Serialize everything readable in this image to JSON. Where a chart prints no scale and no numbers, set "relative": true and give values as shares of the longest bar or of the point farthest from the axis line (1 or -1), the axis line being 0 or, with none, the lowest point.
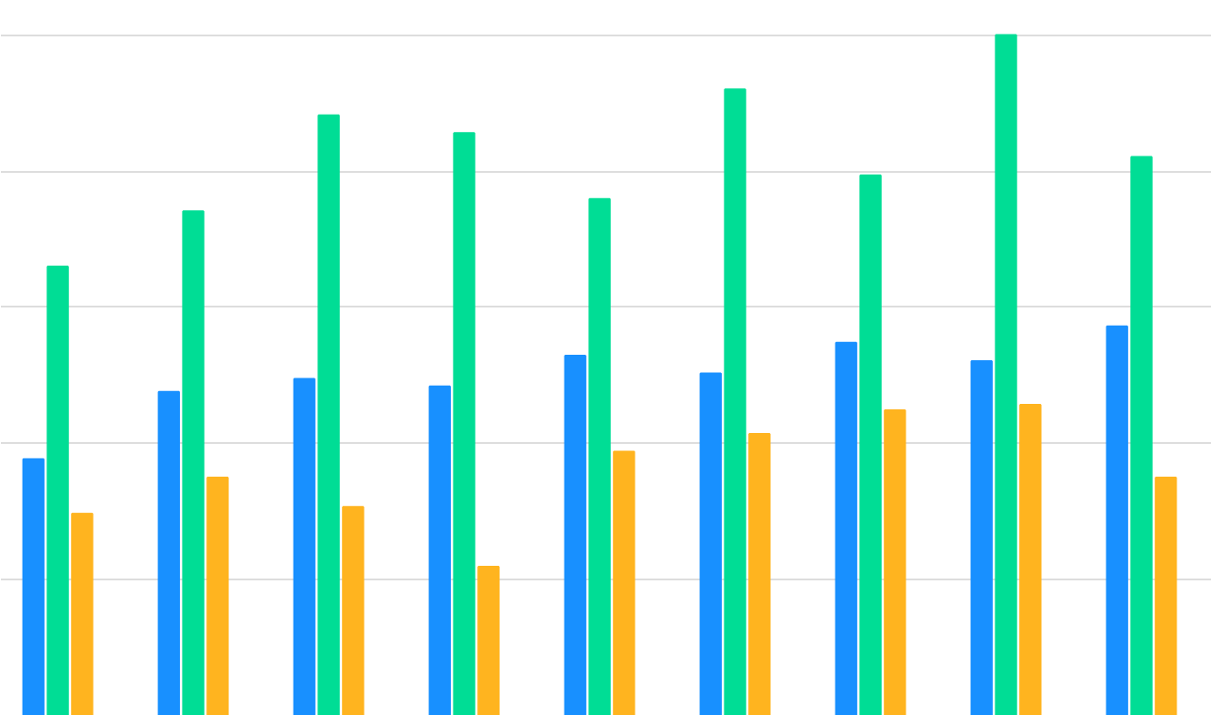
{
  "chart_data": {
    "type": "bar",
    "relative": true,
    "grid": "y",
    "categories": [
      null,
      null,
      null,
      null,
      null,
      null,
      null,
      null,
      null
    ],
    "series": [
      {
        "color": "#1890ff",
        "values": [
          0.377,
          0.476,
          0.495,
          0.484,
          0.529,
          0.503,
          0.548,
          0.521,
          0.572
        ]
      },
      {
        "color": "#00dd95",
        "values": [
          0.66,
          0.741,
          0.882,
          0.856,
          0.759,
          0.92,
          0.794,
          1,
          0.821
        ]
      },
      {
        "color": "#ffb41f",
        "values": [
          0.297,
          0.35,
          0.307,
          0.219,
          0.388,
          0.414,
          0.449,
          0.457,
          0.35
        ]
      }
    ]
  }
}
